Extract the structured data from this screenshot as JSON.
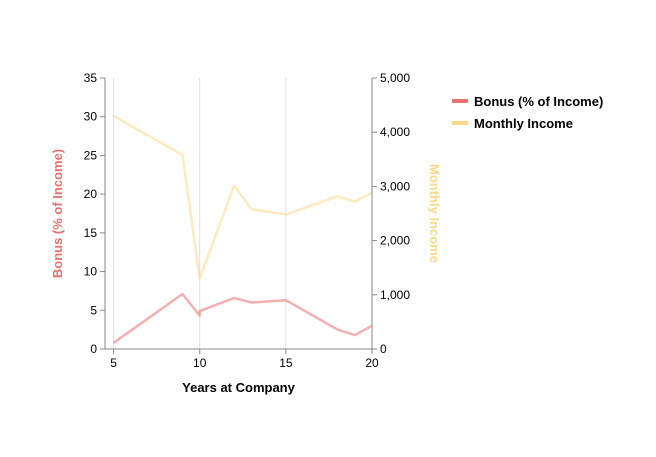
{
  "chart_data": {
    "type": "line",
    "xlabel": "Years at Company",
    "x_ticks": [
      5,
      10,
      15,
      20
    ],
    "xlim": [
      4.5,
      20
    ],
    "y_left": {
      "label": "Bonus (% of Income)",
      "lim": [
        0,
        35
      ],
      "ticks": [
        0,
        5,
        10,
        15,
        20,
        25,
        30,
        35
      ],
      "tick_labels": [
        "0",
        "5",
        "10",
        "15",
        "20",
        "25",
        "30",
        "35"
      ]
    },
    "y_right": {
      "label": "Monthly Income",
      "lim": [
        0,
        5000
      ],
      "ticks": [
        0,
        1000,
        2000,
        3000,
        4000,
        5000
      ],
      "tick_labels": [
        "0",
        "1,000",
        "2,000",
        "3,000",
        "4,000",
        "5,000"
      ]
    },
    "grid": "vertical",
    "series": [
      {
        "name": "Bonus (% of Income)",
        "axis": "left",
        "color": "#e8706f",
        "x": [
          5,
          9,
          10,
          10,
          12,
          13,
          15,
          18,
          19,
          20
        ],
        "values": [
          0.8,
          7.1,
          4.3,
          4.9,
          6.6,
          6.0,
          6.3,
          2.5,
          1.8,
          3.0
        ]
      },
      {
        "name": "Monthly Income",
        "axis": "right",
        "color": "#fcd98a",
        "x": [
          5,
          9,
          10,
          12,
          13,
          15,
          18,
          19,
          20
        ],
        "values": [
          4300,
          3580,
          1300,
          3020,
          2580,
          2480,
          2820,
          2720,
          2880
        ]
      }
    ],
    "legend_placement": "top-right"
  }
}
